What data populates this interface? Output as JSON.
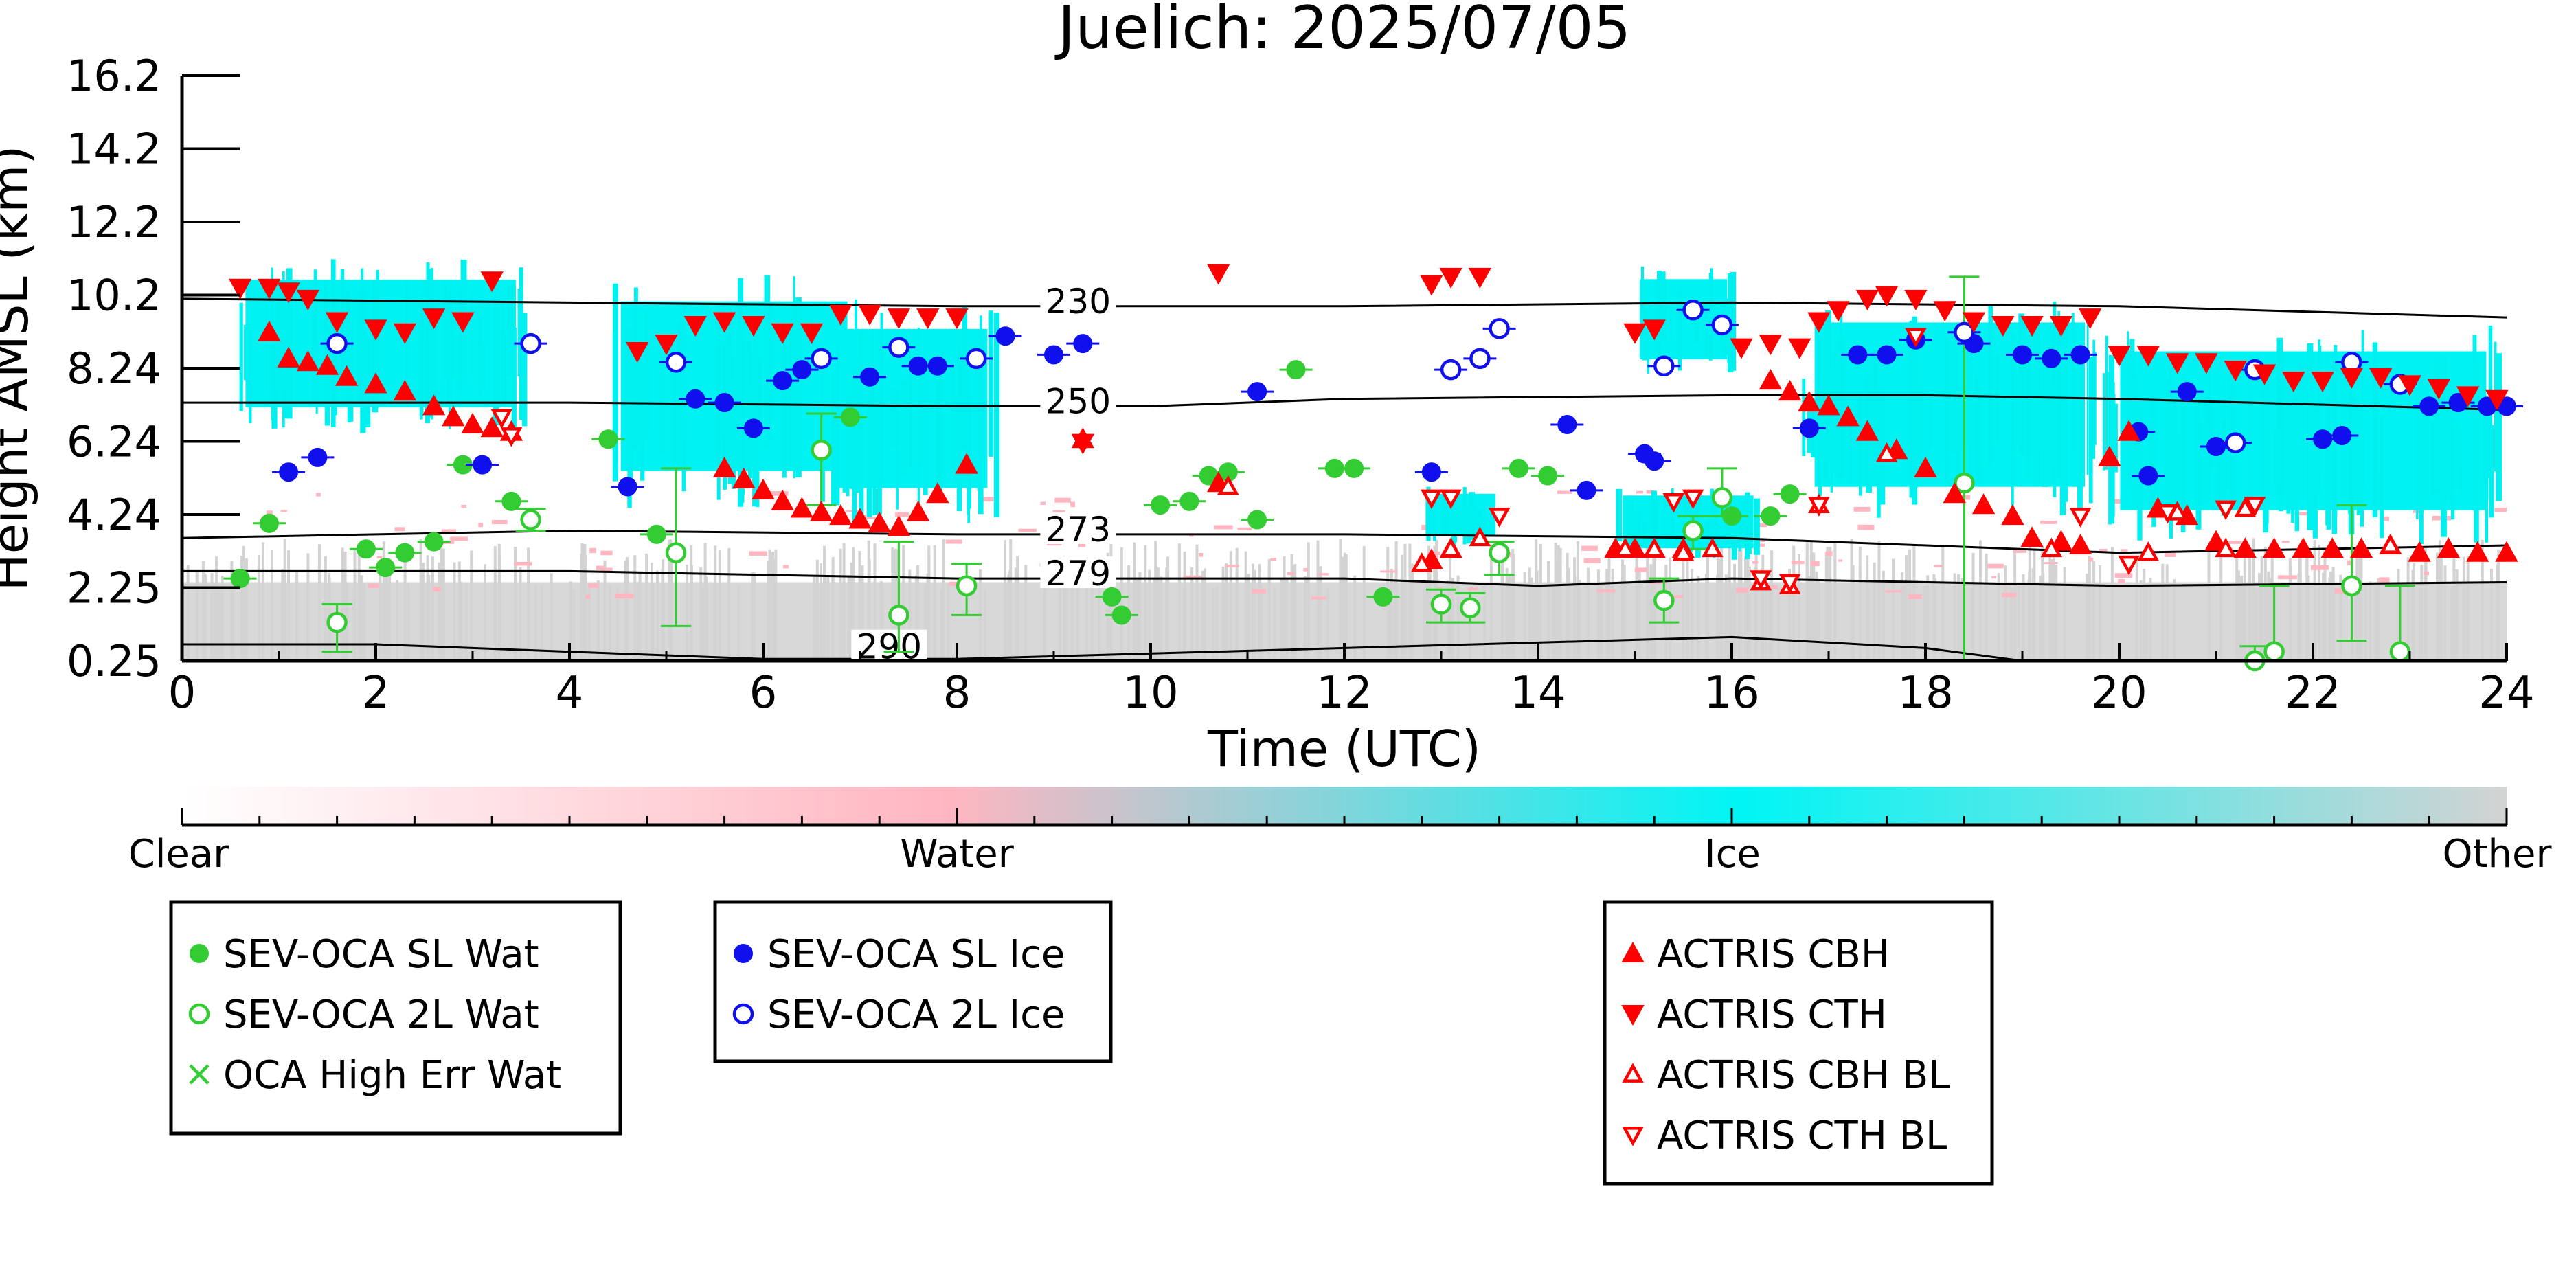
{
  "chart_data": {
    "type": "scatter",
    "title": "Juelich: 2025/07/05",
    "xlabel": "Time (UTC)",
    "ylabel": "Height AMSL (km)",
    "xlim": [
      0,
      24
    ],
    "ylim": [
      0.25,
      16.2
    ],
    "x_ticks": [
      "0",
      "2",
      "4",
      "6",
      "8",
      "10",
      "12",
      "14",
      "16",
      "18",
      "20",
      "22",
      "24"
    ],
    "y_ticks": [
      "0.25",
      "2.25",
      "4.24",
      "6.24",
      "8.24",
      "10.2",
      "12.2",
      "14.2",
      "16.2"
    ],
    "y_tick_values": [
      0.25,
      2.25,
      4.24,
      6.24,
      8.24,
      10.2,
      12.2,
      14.2,
      16.2
    ],
    "colorbar": {
      "labels": [
        "Clear",
        "Water",
        "Ice",
        "Other"
      ],
      "colors": [
        "#ffffff",
        "#ffb6c1",
        "#00f5f5",
        "#d3d3d3"
      ]
    },
    "temperature_contours": [
      {
        "label": "230",
        "x": [
          0,
          4,
          8,
          12,
          16,
          20,
          24
        ],
        "y": [
          10.1,
          10.0,
          9.9,
          9.9,
          10.0,
          9.9,
          9.6
        ]
      },
      {
        "label": "250",
        "x": [
          0,
          4,
          8,
          10,
          12,
          16,
          18,
          20,
          24
        ],
        "y": [
          7.3,
          7.3,
          7.2,
          7.2,
          7.4,
          7.5,
          7.5,
          7.4,
          7.1
        ]
      },
      {
        "label": "273",
        "x": [
          0,
          4,
          8,
          12,
          16,
          20,
          24
        ],
        "y": [
          3.6,
          3.8,
          3.7,
          3.7,
          3.6,
          3.2,
          3.4
        ]
      },
      {
        "label": "279",
        "x": [
          0,
          4,
          8,
          12,
          14,
          16,
          20,
          24
        ],
        "y": [
          2.7,
          2.7,
          2.5,
          2.5,
          2.3,
          2.5,
          2.3,
          2.4
        ]
      },
      {
        "label": "290",
        "x": [
          0,
          2,
          4,
          6,
          8,
          12,
          16,
          18,
          19
        ],
        "y": [
          0.7,
          0.7,
          0.5,
          0.3,
          0.3,
          0.6,
          0.9,
          0.6,
          0.25
        ]
      }
    ],
    "ice_regions": [
      {
        "x": [
          0.5,
          3.6
        ],
        "y": [
          6.4,
          11.2
        ]
      },
      {
        "x": [
          4.4,
          7.0
        ],
        "y": [
          4.4,
          10.8
        ]
      },
      {
        "x": [
          6.7,
          8.4
        ],
        "y": [
          4.0,
          10.0
        ]
      },
      {
        "x": [
          12.8,
          13.6
        ],
        "y": [
          3.4,
          5.0
        ]
      },
      {
        "x": [
          14.8,
          16.3
        ],
        "y": [
          3.0,
          5.0
        ]
      },
      {
        "x": [
          15.0,
          16.0
        ],
        "y": [
          8.0,
          11.0
        ]
      },
      {
        "x": [
          16.7,
          19.8
        ],
        "y": [
          4.0,
          10.2
        ]
      },
      {
        "x": [
          19.8,
          24.0
        ],
        "y": [
          3.4,
          9.4
        ]
      }
    ],
    "series": [
      {
        "name": "SEV-OCA SL Wat",
        "marker": "circle-filled",
        "color": "#33cc33",
        "x": [
          0.6,
          0.9,
          1.9,
          2.1,
          2.3,
          2.6,
          2.9,
          3.4,
          4.4,
          4.9,
          6.9,
          9.6,
          9.7,
          10.1,
          10.4,
          10.6,
          10.8,
          11.1,
          11.5,
          11.9,
          12.1,
          12.4,
          12.9,
          13.8,
          14.1,
          16.0,
          16.4,
          16.6
        ],
        "y": [
          2.5,
          4.0,
          3.3,
          2.8,
          3.2,
          3.5,
          5.6,
          4.6,
          6.3,
          3.7,
          6.9,
          2.0,
          1.5,
          4.5,
          4.6,
          5.3,
          5.4,
          4.1,
          8.2,
          5.5,
          5.5,
          2.0,
          5.4,
          5.5,
          5.3,
          4.2,
          4.2,
          4.8
        ]
      },
      {
        "name": "SEV-OCA 2L Wat",
        "marker": "circle-open",
        "color": "#33cc33",
        "x": [
          1.6,
          3.6,
          5.1,
          6.6,
          7.4,
          8.1,
          13.0,
          13.3,
          13.6,
          15.3,
          15.6,
          15.9,
          18.4,
          21.4,
          21.6,
          22.4,
          22.9
        ],
        "y": [
          1.3,
          4.1,
          3.2,
          6.0,
          1.5,
          2.3,
          1.8,
          1.7,
          3.2,
          1.9,
          3.8,
          4.7,
          5.1,
          0.25,
          0.5,
          2.3,
          0.5
        ],
        "err_low": [
          0.8,
          0.3,
          2.0,
          1.5,
          1.0,
          0.8,
          0.5,
          0.4,
          0.6,
          0.6,
          0.5,
          0.5,
          6.0,
          0.5,
          0.5,
          1.5,
          0.5
        ],
        "err_high": [
          0.5,
          0.3,
          2.3,
          1.0,
          2.0,
          0.6,
          0.4,
          0.4,
          0.3,
          0.6,
          0.4,
          0.8,
          5.6,
          0.4,
          1.8,
          2.2,
          1.8
        ]
      },
      {
        "name": "OCA High Err Wat",
        "marker": "x",
        "color": "#33cc33",
        "x": [],
        "y": []
      },
      {
        "name": "SEV-OCA SL Ice",
        "marker": "circle-filled",
        "color": "#1010ee",
        "x": [
          1.1,
          1.4,
          3.1,
          4.6,
          5.3,
          5.6,
          5.9,
          6.2,
          6.4,
          7.1,
          7.6,
          7.8,
          8.5,
          9.0,
          9.3,
          11.1,
          12.9,
          14.3,
          14.5,
          15.1,
          15.2,
          16.8,
          17.3,
          17.6,
          17.9,
          18.5,
          19.0,
          19.3,
          19.6,
          20.2,
          20.3,
          20.7,
          21.0,
          22.1,
          22.3,
          23.2,
          23.5,
          23.8,
          24.0
        ],
        "y": [
          5.4,
          5.8,
          5.6,
          5.0,
          7.4,
          7.3,
          6.6,
          7.9,
          8.2,
          8.0,
          8.3,
          8.3,
          9.1,
          8.6,
          8.9,
          7.6,
          5.4,
          6.7,
          4.9,
          5.9,
          5.7,
          6.6,
          8.6,
          8.6,
          9.0,
          8.9,
          8.6,
          8.5,
          8.6,
          6.5,
          5.3,
          7.6,
          6.1,
          6.3,
          6.4,
          7.2,
          7.3,
          7.2,
          7.2
        ]
      },
      {
        "name": "SEV-OCA 2L Ice",
        "marker": "circle-open",
        "color": "#1010ee",
        "x": [
          1.6,
          3.6,
          5.1,
          6.6,
          7.4,
          8.2,
          13.1,
          13.4,
          13.6,
          15.3,
          15.6,
          15.9,
          18.4,
          21.2,
          21.4,
          22.4,
          22.9
        ],
        "y": [
          8.9,
          8.9,
          8.4,
          8.5,
          8.8,
          8.5,
          8.2,
          8.5,
          9.3,
          8.3,
          9.8,
          9.4,
          9.2,
          6.2,
          8.2,
          8.4,
          7.8
        ]
      },
      {
        "name": "ACTRIS CBH",
        "marker": "triangle-up",
        "color": "#ff0000",
        "x": [
          0.9,
          1.1,
          1.3,
          1.5,
          1.7,
          2.0,
          2.3,
          2.6,
          2.8,
          3.0,
          3.2,
          3.4,
          5.6,
          5.8,
          6.0,
          6.2,
          6.4,
          6.6,
          6.8,
          7.0,
          7.2,
          7.4,
          7.6,
          7.8,
          8.1,
          9.3,
          10.7,
          12.9,
          13.1,
          14.8,
          15.0,
          15.2,
          15.5,
          16.4,
          16.6,
          16.8,
          17.0,
          17.2,
          17.4,
          17.7,
          18.0,
          18.3,
          18.6,
          18.9,
          19.1,
          19.4,
          19.6,
          19.9,
          20.1,
          20.4,
          20.7,
          21.0,
          21.3,
          21.6,
          21.9,
          22.2,
          22.5,
          22.8,
          23.1,
          23.4,
          23.7,
          24.0
        ],
        "y": [
          9.2,
          8.5,
          8.4,
          8.3,
          8.0,
          7.8,
          7.6,
          7.2,
          6.9,
          6.7,
          6.6,
          6.5,
          5.5,
          5.2,
          4.9,
          4.6,
          4.4,
          4.3,
          4.2,
          4.1,
          4.0,
          3.9,
          4.3,
          4.8,
          5.6,
          6.3,
          5.1,
          3.0,
          3.3,
          3.3,
          3.3,
          3.3,
          3.3,
          7.9,
          7.6,
          7.3,
          7.2,
          6.9,
          6.5,
          6.0,
          5.5,
          4.8,
          4.5,
          4.2,
          3.6,
          3.5,
          3.4,
          5.8,
          6.5,
          4.4,
          4.2,
          3.5,
          3.3,
          3.3,
          3.3,
          3.3,
          3.3,
          3.4,
          3.2,
          3.3,
          3.2,
          3.2
        ]
      },
      {
        "name": "ACTRIS CTH",
        "marker": "triangle-down",
        "color": "#ff0000",
        "x": [
          0.6,
          0.9,
          1.1,
          1.3,
          1.6,
          2.0,
          2.3,
          2.6,
          2.9,
          3.2,
          4.7,
          5.0,
          5.3,
          5.6,
          5.9,
          6.2,
          6.5,
          6.8,
          7.1,
          7.4,
          7.7,
          8.0,
          9.3,
          10.7,
          12.9,
          13.1,
          13.4,
          15.0,
          15.2,
          16.1,
          16.4,
          16.7,
          16.9,
          17.1,
          17.4,
          17.6,
          17.9,
          18.2,
          18.5,
          18.8,
          19.1,
          19.4,
          19.7,
          20.0,
          20.3,
          20.6,
          20.9,
          21.2,
          21.5,
          21.8,
          22.1,
          22.4,
          22.7,
          23.0,
          23.3,
          23.6,
          23.9
        ],
        "y": [
          10.4,
          10.4,
          10.3,
          10.1,
          9.5,
          9.3,
          9.2,
          9.6,
          9.5,
          10.6,
          8.7,
          8.9,
          9.4,
          9.5,
          9.4,
          9.2,
          9.2,
          9.7,
          9.7,
          9.6,
          9.6,
          9.6,
          6.2,
          10.8,
          10.5,
          10.7,
          10.7,
          9.2,
          9.3,
          8.8,
          8.9,
          8.8,
          9.5,
          9.8,
          10.1,
          10.2,
          10.1,
          9.8,
          9.5,
          9.4,
          9.4,
          9.4,
          9.6,
          8.6,
          8.6,
          8.4,
          8.4,
          8.2,
          8.1,
          7.9,
          7.9,
          8.0,
          8.0,
          7.8,
          7.7,
          7.5,
          7.4
        ]
      },
      {
        "name": "ACTRIS CBH BL",
        "marker": "triangle-up-open",
        "color": "#ff0000",
        "x": [
          10.8,
          12.8,
          13.1,
          13.4,
          14.9,
          15.2,
          15.5,
          15.8,
          16.3,
          16.6,
          16.9,
          17.6,
          19.3,
          20.3,
          20.6,
          21.1,
          21.3,
          22.8
        ],
        "y": [
          5.0,
          2.9,
          3.3,
          3.6,
          3.3,
          3.3,
          3.2,
          3.3,
          2.4,
          2.3,
          4.5,
          5.9,
          3.3,
          3.2,
          4.3,
          3.3,
          4.4,
          3.4
        ]
      },
      {
        "name": "ACTRIS CTH BL",
        "marker": "triangle-down-open",
        "color": "#ff0000",
        "x": [
          3.3,
          3.4,
          12.9,
          13.1,
          13.6,
          15.4,
          15.6,
          16.3,
          16.6,
          16.9,
          17.9,
          19.6,
          20.1,
          20.5,
          21.1,
          21.4
        ],
        "y": [
          6.9,
          6.4,
          4.7,
          4.7,
          4.2,
          4.6,
          4.7,
          2.5,
          2.4,
          4.5,
          9.1,
          4.2,
          2.9,
          4.3,
          4.4,
          4.5
        ]
      }
    ]
  },
  "legends": [
    {
      "items": [
        {
          "label": "SEV-OCA SL Wat",
          "marker": "circle-filled",
          "color": "#33cc33"
        },
        {
          "label": "SEV-OCA 2L Wat",
          "marker": "circle-open",
          "color": "#33cc33"
        },
        {
          "label": "OCA High Err Wat",
          "marker": "x",
          "color": "#33cc33"
        }
      ]
    },
    {
      "items": [
        {
          "label": "SEV-OCA SL Ice",
          "marker": "circle-filled",
          "color": "#1010ee"
        },
        {
          "label": "SEV-OCA 2L Ice",
          "marker": "circle-open",
          "color": "#1010ee"
        }
      ]
    },
    {
      "items": [
        {
          "label": "ACTRIS CBH",
          "marker": "triangle-up",
          "color": "#ff0000"
        },
        {
          "label": "ACTRIS CTH",
          "marker": "triangle-down",
          "color": "#ff0000"
        },
        {
          "label": "ACTRIS CBH BL",
          "marker": "triangle-up-open",
          "color": "#ff0000"
        },
        {
          "label": "ACTRIS CTH BL",
          "marker": "triangle-down-open",
          "color": "#ff0000"
        }
      ]
    }
  ]
}
